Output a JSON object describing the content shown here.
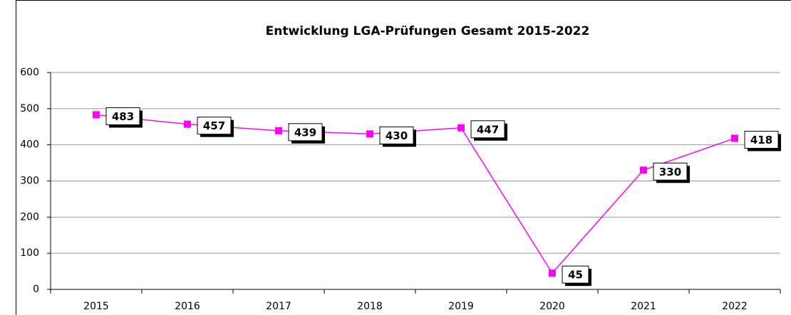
{
  "chart_data": {
    "type": "line",
    "title": "Entwicklung LGA-Prüfungen Gesamt 2015-2022",
    "categories": [
      "2015",
      "2016",
      "2017",
      "2018",
      "2019",
      "2020",
      "2021",
      "2022"
    ],
    "values": [
      483,
      457,
      439,
      430,
      447,
      45,
      330,
      418
    ],
    "color": "#ff00ff",
    "ylim": [
      0,
      600
    ],
    "yticks": [
      0,
      100,
      200,
      300,
      400,
      500,
      600
    ],
    "grid": true
  }
}
